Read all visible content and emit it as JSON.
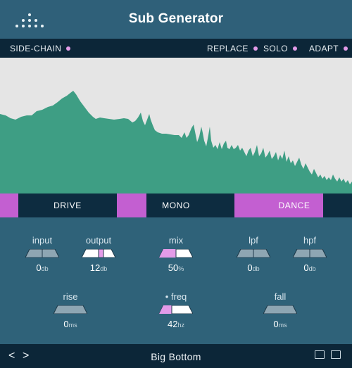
{
  "header": {
    "title": "Sub Generator",
    "logo_icon": "dot-grid-logo-icon"
  },
  "options": {
    "side_chain": "SIDE-CHAIN",
    "replace": "REPLACE",
    "solo": "SOLO",
    "adapt": "ADAPT",
    "indicator_color": "#e39be8"
  },
  "modes": {
    "drive": "DRIVE",
    "mono": "MONO",
    "dance": "DANCE",
    "active": "DANCE",
    "accent": "#c35fd1"
  },
  "spectrum": {
    "fill_color": "#3e9e84",
    "background": "#e5e5e5"
  },
  "controls": {
    "input": {
      "label": "input",
      "value": "0",
      "unit": "db"
    },
    "output": {
      "label": "output",
      "value": "12",
      "unit": "db"
    },
    "mix": {
      "label": "mix",
      "value": "50",
      "unit": "%"
    },
    "lpf": {
      "label": "lpf",
      "value": "0",
      "unit": "db"
    },
    "hpf": {
      "label": "hpf",
      "value": "0",
      "unit": "db"
    },
    "rise": {
      "label": "rise",
      "value": "0",
      "unit": "ms"
    },
    "freq": {
      "label": "freq",
      "value": "42",
      "unit": "hz",
      "bullet": "•"
    },
    "fall": {
      "label": "fall",
      "value": "0",
      "unit": "ms"
    }
  },
  "footer": {
    "prev": "<",
    "next": ">",
    "preset_name": "Big Bottom"
  }
}
